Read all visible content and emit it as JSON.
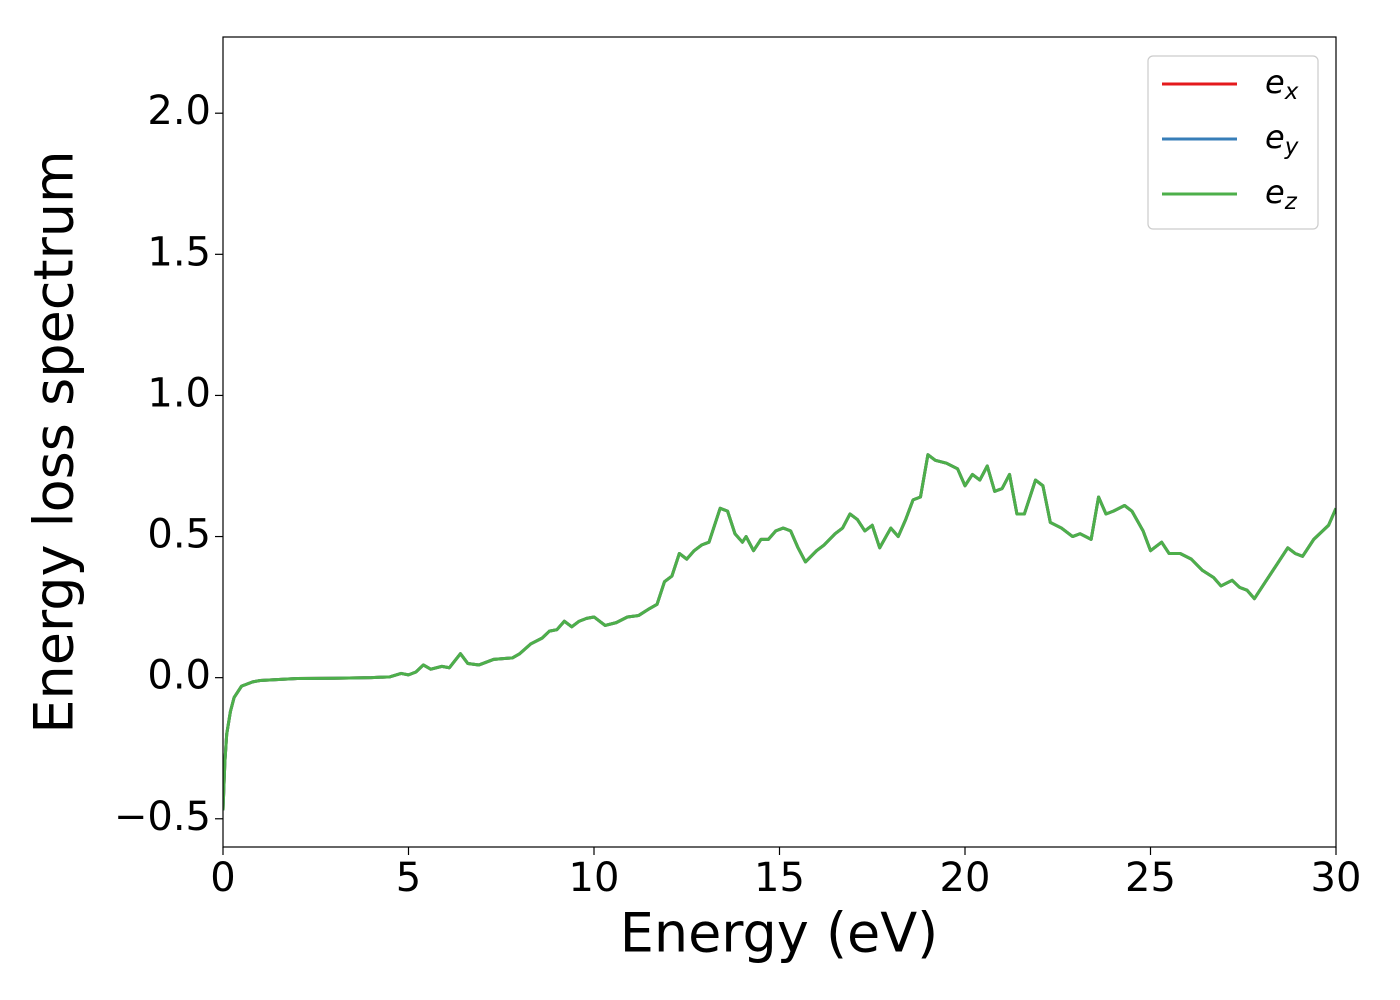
{
  "chart_data": {
    "type": "line",
    "xlabel": "Energy (eV)",
    "ylabel": "Energy loss spectrum",
    "xlim": [
      0,
      30
    ],
    "ylim": [
      -0.6,
      2.27
    ],
    "xticks": [
      0,
      5,
      10,
      15,
      20,
      25,
      30
    ],
    "yticks": [
      {
        "value": -0.5,
        "label": "−0.5"
      },
      {
        "value": 0,
        "label": "0.0"
      },
      0.5,
      {
        "value": 1,
        "label": "1.0"
      },
      1.5,
      {
        "value": 2,
        "label": "2.0"
      }
    ],
    "legend": "upper right",
    "x": [
      0,
      0.05,
      0.1,
      0.2,
      0.3,
      0.5,
      0.8,
      1,
      2,
      3,
      4,
      4.5,
      4.8,
      5,
      5.2,
      5.4,
      5.6,
      5.9,
      6.1,
      6.4,
      6.6,
      6.9,
      7.3,
      7.8,
      8,
      8.3,
      8.6,
      8.8,
      9,
      9.2,
      9.4,
      9.6,
      9.8,
      10,
      10.3,
      10.6,
      10.9,
      11.2,
      11.5,
      11.7,
      11.9,
      12.1,
      12.3,
      12.5,
      12.7,
      12.9,
      13.1,
      13.4,
      13.6,
      13.8,
      14,
      14.1,
      14.3,
      14.5,
      14.7,
      14.9,
      15.1,
      15.3,
      15.5,
      15.7,
      16,
      16.2,
      16.5,
      16.7,
      16.9,
      17.1,
      17.3,
      17.5,
      17.7,
      18,
      18.2,
      18.4,
      18.6,
      18.8,
      19,
      19.2,
      19.5,
      19.8,
      20,
      20.2,
      20.4,
      20.6,
      20.8,
      21,
      21.2,
      21.4,
      21.6,
      21.9,
      22.1,
      22.3,
      22.6,
      22.9,
      23.1,
      23.4,
      23.6,
      23.8,
      24,
      24.3,
      24.5,
      24.8,
      25,
      25.3,
      25.5,
      25.8,
      26.1,
      26.4,
      26.7,
      26.9,
      27.2,
      27.4,
      27.6,
      27.8,
      28.1,
      28.4,
      28.7,
      28.9,
      29.1,
      29.4,
      29.8,
      30
    ],
    "series": [
      {
        "name": "ex",
        "color": "#e41a1c",
        "values": [
          -0.47,
          -0.3,
          -0.2,
          -0.12,
          -0.07,
          -0.03,
          -0.015,
          -0.01,
          -0.003,
          -0.002,
          0,
          0.003,
          0.015,
          0.01,
          0.02,
          0.045,
          0.03,
          0.04,
          0.035,
          0.085,
          0.05,
          0.045,
          0.065,
          0.07,
          0.085,
          0.12,
          0.14,
          0.165,
          0.17,
          0.2,
          0.18,
          0.2,
          0.21,
          0.215,
          0.185,
          0.195,
          0.215,
          0.22,
          0.245,
          0.26,
          0.34,
          0.36,
          0.44,
          0.42,
          0.45,
          0.47,
          0.48,
          0.6,
          0.59,
          0.51,
          0.48,
          0.5,
          0.45,
          0.49,
          0.49,
          0.52,
          0.53,
          0.52,
          0.46,
          0.41,
          0.45,
          0.47,
          0.51,
          0.53,
          0.58,
          0.56,
          0.52,
          0.54,
          0.46,
          0.53,
          0.5,
          0.56,
          0.63,
          0.64,
          0.79,
          0.77,
          0.76,
          0.74,
          0.68,
          0.72,
          0.7,
          0.75,
          0.66,
          0.67,
          0.72,
          0.58,
          0.58,
          0.7,
          0.68,
          0.55,
          0.53,
          0.5,
          0.51,
          0.49,
          0.64,
          0.58,
          0.59,
          0.61,
          0.59,
          0.52,
          0.45,
          0.48,
          0.44,
          0.44,
          0.42,
          0.38,
          0.355,
          0.325,
          0.345,
          0.32,
          0.31,
          0.28,
          0.34,
          0.4,
          0.46,
          0.44,
          0.43,
          0.49,
          0.54,
          0.6
        ]
      },
      {
        "name": "ey",
        "color": "#377eb8",
        "values": [
          -0.47,
          -0.3,
          -0.2,
          -0.12,
          -0.07,
          -0.03,
          -0.015,
          -0.01,
          -0.003,
          -0.002,
          0,
          0.003,
          0.015,
          0.01,
          0.02,
          0.045,
          0.03,
          0.04,
          0.035,
          0.085,
          0.05,
          0.045,
          0.065,
          0.07,
          0.085,
          0.12,
          0.14,
          0.165,
          0.17,
          0.2,
          0.18,
          0.2,
          0.21,
          0.215,
          0.185,
          0.195,
          0.215,
          0.22,
          0.245,
          0.26,
          0.34,
          0.36,
          0.44,
          0.42,
          0.45,
          0.47,
          0.48,
          0.6,
          0.59,
          0.51,
          0.48,
          0.5,
          0.45,
          0.49,
          0.49,
          0.52,
          0.53,
          0.52,
          0.46,
          0.41,
          0.45,
          0.47,
          0.51,
          0.53,
          0.58,
          0.56,
          0.52,
          0.54,
          0.46,
          0.53,
          0.5,
          0.56,
          0.63,
          0.64,
          0.79,
          0.77,
          0.76,
          0.74,
          0.68,
          0.72,
          0.7,
          0.75,
          0.66,
          0.67,
          0.72,
          0.58,
          0.58,
          0.7,
          0.68,
          0.55,
          0.53,
          0.5,
          0.51,
          0.49,
          0.64,
          0.58,
          0.59,
          0.61,
          0.59,
          0.52,
          0.45,
          0.48,
          0.44,
          0.44,
          0.42,
          0.38,
          0.355,
          0.325,
          0.345,
          0.32,
          0.31,
          0.28,
          0.34,
          0.4,
          0.46,
          0.44,
          0.43,
          0.49,
          0.54,
          0.6
        ]
      },
      {
        "name": "ez",
        "color": "#4daf4a",
        "values": [
          -0.47,
          -0.3,
          -0.2,
          -0.12,
          -0.07,
          -0.03,
          -0.015,
          -0.01,
          -0.003,
          -0.002,
          0,
          0.003,
          0.015,
          0.01,
          0.02,
          0.045,
          0.03,
          0.04,
          0.035,
          0.085,
          0.05,
          0.045,
          0.065,
          0.07,
          0.085,
          0.12,
          0.14,
          0.165,
          0.17,
          0.2,
          0.18,
          0.2,
          0.21,
          0.215,
          0.185,
          0.195,
          0.215,
          0.22,
          0.245,
          0.26,
          0.34,
          0.36,
          0.44,
          0.42,
          0.45,
          0.47,
          0.48,
          0.6,
          0.59,
          0.51,
          0.48,
          0.5,
          0.45,
          0.49,
          0.49,
          0.52,
          0.53,
          0.52,
          0.46,
          0.41,
          0.45,
          0.47,
          0.51,
          0.53,
          0.58,
          0.56,
          0.52,
          0.54,
          0.46,
          0.53,
          0.5,
          0.56,
          0.63,
          0.64,
          0.79,
          0.77,
          0.76,
          0.74,
          0.68,
          0.72,
          0.7,
          0.75,
          0.66,
          0.67,
          0.72,
          0.58,
          0.58,
          0.7,
          0.68,
          0.55,
          0.53,
          0.5,
          0.51,
          0.49,
          0.64,
          0.58,
          0.59,
          0.61,
          0.59,
          0.52,
          0.45,
          0.48,
          0.44,
          0.44,
          0.42,
          0.38,
          0.355,
          0.325,
          0.345,
          0.32,
          0.31,
          0.28,
          0.34,
          0.4,
          0.46,
          0.44,
          0.43,
          0.49,
          0.54,
          0.6
        ]
      }
    ]
  }
}
